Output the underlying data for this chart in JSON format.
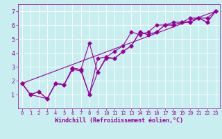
{
  "background_color": "#c8eef0",
  "grid_color": "#ffffff",
  "line_color": "#990099",
  "xlabel": "Windchill (Refroidissement éolien,°C)",
  "xlabel_color": "#990099",
  "tick_color": "#990099",
  "xlim": [
    -0.5,
    23.5
  ],
  "ylim": [
    0,
    7.5
  ],
  "xticks": [
    0,
    1,
    2,
    3,
    4,
    5,
    6,
    7,
    8,
    9,
    10,
    11,
    12,
    13,
    14,
    15,
    16,
    17,
    18,
    19,
    20,
    21,
    22,
    23
  ],
  "yticks": [
    1,
    2,
    3,
    4,
    5,
    6,
    7
  ],
  "line1_x": [
    0,
    1,
    2,
    3,
    4,
    5,
    6,
    7,
    8,
    9,
    10,
    11,
    12,
    13,
    14,
    15,
    16,
    17,
    18,
    19,
    20,
    21,
    22,
    23
  ],
  "line1_y": [
    1.8,
    1.0,
    1.2,
    0.7,
    1.8,
    1.7,
    2.8,
    2.7,
    1.0,
    2.6,
    3.7,
    3.6,
    4.1,
    4.5,
    5.5,
    5.3,
    5.5,
    6.0,
    6.0,
    6.2,
    6.2,
    6.5,
    6.2,
    7.0
  ],
  "line2_x": [
    0,
    1,
    3,
    4,
    5,
    6,
    7,
    8,
    9,
    10,
    11,
    12,
    13,
    14,
    15,
    16,
    17,
    18,
    19,
    20,
    21,
    22,
    23
  ],
  "line2_y": [
    1.8,
    1.0,
    0.7,
    1.8,
    1.7,
    2.9,
    2.8,
    4.7,
    2.6,
    3.6,
    3.6,
    4.1,
    4.5,
    5.5,
    5.3,
    5.5,
    6.0,
    6.0,
    6.2,
    6.2,
    6.5,
    6.5,
    7.0
  ],
  "line3_x": [
    0,
    1,
    2,
    3,
    4,
    5,
    6,
    7,
    8,
    9,
    10,
    11,
    12,
    13,
    14,
    15,
    16,
    17,
    18,
    19,
    20,
    21,
    22,
    23
  ],
  "line3_y": [
    1.8,
    1.0,
    1.2,
    0.7,
    1.8,
    1.7,
    2.9,
    2.8,
    1.0,
    3.6,
    3.7,
    4.1,
    4.5,
    5.5,
    5.3,
    5.5,
    6.0,
    6.0,
    6.2,
    6.2,
    6.5,
    6.5,
    6.2,
    7.0
  ],
  "line4_x": [
    0,
    23
  ],
  "line4_y": [
    1.8,
    7.0
  ],
  "font_size_label": 6,
  "font_size_tick": 5,
  "marker_size": 2.5,
  "line_width": 0.8
}
